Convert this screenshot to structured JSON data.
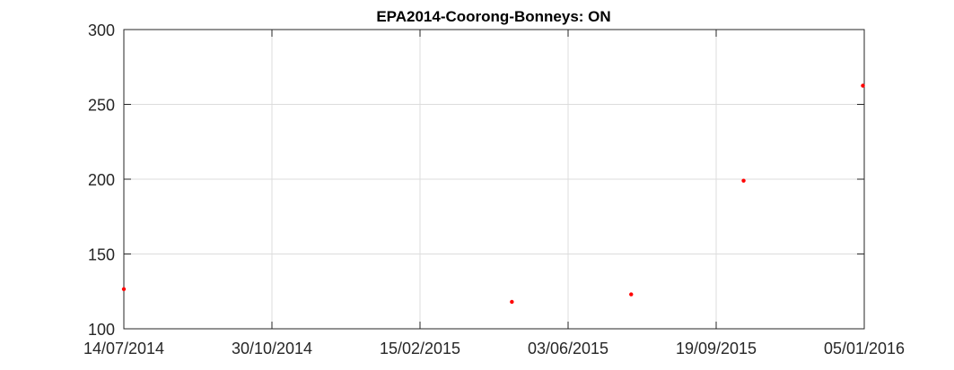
{
  "chart_data": {
    "type": "scatter",
    "title": "EPA2014-Coorong-Bonneys: ON",
    "xlabel": "",
    "ylabel": "",
    "x_axis_type": "date",
    "xlim": [
      "2014-07-14",
      "2016-01-05"
    ],
    "ylim": [
      100,
      300
    ],
    "x_ticks": [
      "2014-07-14",
      "2014-10-30",
      "2015-02-15",
      "2015-06-03",
      "2015-09-19",
      "2016-01-05"
    ],
    "x_tick_labels": [
      "14/07/2014",
      "30/10/2014",
      "15/02/2015",
      "03/06/2015",
      "19/09/2015",
      "05/01/2016"
    ],
    "y_ticks": [
      100,
      150,
      200,
      250,
      300
    ],
    "y_tick_labels": [
      "100",
      "150",
      "200",
      "250",
      "300"
    ],
    "grid": true,
    "legend": "none",
    "series": [
      {
        "color": "#ff0000",
        "marker": "dot",
        "points": [
          {
            "x": "2014-07-14",
            "y": 126.5
          },
          {
            "x": "2015-04-23",
            "y": 118
          },
          {
            "x": "2015-07-19",
            "y": 123
          },
          {
            "x": "2015-10-09",
            "y": 199
          },
          {
            "x": "2016-01-04",
            "y": 262.5
          }
        ]
      }
    ]
  }
}
